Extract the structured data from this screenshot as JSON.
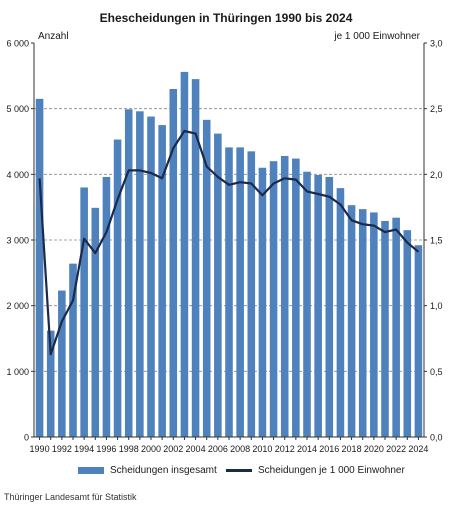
{
  "title": "Ehescheidungen in Thüringen 1990 bis 2024",
  "source": "Thüringer Landesamt für Statistik",
  "chart_data": {
    "type": "bar+line",
    "x": [
      1990,
      1991,
      1992,
      1993,
      1994,
      1995,
      1996,
      1997,
      1998,
      1999,
      2000,
      2001,
      2002,
      2003,
      2004,
      2005,
      2006,
      2007,
      2008,
      2009,
      2010,
      2011,
      2012,
      2013,
      2014,
      2015,
      2016,
      2017,
      2018,
      2019,
      2020,
      2021,
      2022,
      2023,
      2024
    ],
    "x_tick_labels": [
      "1990",
      "1992",
      "1994",
      "1996",
      "1998",
      "2000",
      "2002",
      "2004",
      "2006",
      "2008",
      "2010",
      "2012",
      "2014",
      "2016",
      "2018",
      "2020",
      "2022",
      "2024"
    ],
    "left_axis": {
      "label": "Anzahl",
      "ylim": [
        0,
        6000
      ],
      "ticks": [
        "0",
        "1 000",
        "2 000",
        "3 000",
        "4 000",
        "5 000",
        "6 000"
      ]
    },
    "right_axis": {
      "label": "je 1 000 Einwohner",
      "ylim": [
        0,
        3.0
      ],
      "ticks": [
        "0,0",
        "0,5",
        "1,0",
        "1,5",
        "2,0",
        "2,5",
        "3,0"
      ]
    },
    "grid": "horizontal dashed",
    "legend_placement": "bottom",
    "series": [
      {
        "name": "Scheidungen insgesamt",
        "type": "bar",
        "axis": "left",
        "color": "#4f81bd",
        "values": [
          5150,
          1620,
          2230,
          2640,
          3800,
          3490,
          3960,
          4530,
          4990,
          4960,
          4880,
          4750,
          5300,
          5560,
          5450,
          4830,
          4620,
          4410,
          4410,
          4350,
          4100,
          4200,
          4280,
          4240,
          4040,
          3990,
          3960,
          3790,
          3530,
          3470,
          3420,
          3290,
          3340,
          3150,
          2920
        ]
      },
      {
        "name": "Scheidungen je 1 000 Einwohner",
        "type": "line",
        "axis": "right",
        "color": "#1b2a4a",
        "values": [
          1.97,
          0.63,
          0.88,
          1.04,
          1.51,
          1.4,
          1.56,
          1.81,
          2.03,
          2.03,
          2.01,
          1.97,
          2.2,
          2.33,
          2.31,
          2.06,
          1.98,
          1.92,
          1.94,
          1.93,
          1.84,
          1.93,
          1.97,
          1.96,
          1.87,
          1.85,
          1.83,
          1.77,
          1.65,
          1.62,
          1.61,
          1.56,
          1.58,
          1.48,
          1.41
        ]
      }
    ]
  }
}
